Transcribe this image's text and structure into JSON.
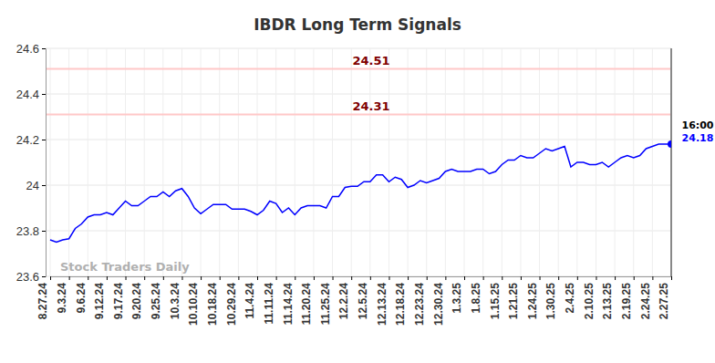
{
  "chart_data": {
    "type": "line",
    "title": "IBDR Long Term Signals",
    "watermark": "Stock Traders Daily",
    "annotations": [
      "16:00"
    ],
    "hlines": [
      24.51,
      24.31
    ],
    "categories": [
      "8.27.24",
      null,
      null,
      "9.3.24",
      null,
      null,
      "9.6.24",
      null,
      null,
      "9.12.24",
      null,
      null,
      "9.17.24",
      null,
      null,
      "9.20.24",
      null,
      null,
      "9.25.24",
      null,
      null,
      "10.3.24",
      null,
      null,
      "10.10.24",
      null,
      null,
      "10.18.24",
      null,
      null,
      "10.29.24",
      null,
      null,
      "11.4.24",
      null,
      null,
      "11.11.24",
      null,
      null,
      "11.14.24",
      null,
      null,
      "11.20.24",
      null,
      null,
      "11.25.24",
      null,
      null,
      "12.2.24",
      null,
      null,
      "12.5.24",
      null,
      null,
      "12.13.24",
      null,
      null,
      "12.18.24",
      null,
      null,
      "12.23.24",
      null,
      null,
      "12.30.24",
      null,
      null,
      "1.3.25",
      null,
      null,
      "1.8.25",
      null,
      null,
      "1.15.25",
      null,
      null,
      "1.21.25",
      null,
      null,
      "1.24.25",
      null,
      null,
      "1.30.25",
      null,
      null,
      "2.4.25",
      null,
      null,
      "2.10.25",
      null,
      null,
      "2.13.25",
      null,
      null,
      "2.19.25",
      null,
      null,
      "2.24.25",
      null,
      null,
      "2.27.25"
    ],
    "series": [
      {
        "name": "IBDR",
        "color": "#0000ff",
        "values": [
          23.76,
          23.75,
          23.76,
          23.765,
          23.81,
          23.83,
          23.86,
          23.87,
          23.87,
          23.88,
          23.87,
          23.9,
          23.93,
          23.91,
          23.91,
          23.93,
          23.95,
          23.95,
          23.97,
          23.95,
          23.975,
          23.985,
          23.95,
          23.9,
          23.875,
          23.895,
          23.915,
          23.915,
          23.915,
          23.895,
          23.895,
          23.895,
          23.885,
          23.87,
          23.89,
          23.93,
          23.92,
          23.88,
          23.9,
          23.87,
          23.9,
          23.91,
          23.91,
          23.91,
          23.9,
          23.95,
          23.95,
          23.99,
          23.995,
          23.995,
          24.015,
          24.015,
          24.045,
          24.045,
          24.015,
          24.035,
          24.025,
          23.99,
          24.0,
          24.02,
          24.01,
          24.02,
          24.03,
          24.06,
          24.07,
          24.06,
          24.06,
          24.06,
          24.07,
          24.07,
          24.05,
          24.06,
          24.09,
          24.11,
          24.11,
          24.13,
          24.12,
          24.12,
          24.14,
          24.16,
          24.15,
          24.16,
          24.17,
          24.08,
          24.1,
          24.1,
          24.09,
          24.09,
          24.1,
          24.08,
          24.1,
          24.12,
          24.13,
          24.12,
          24.13,
          24.16,
          24.17,
          24.18,
          24.18,
          24.18
        ]
      }
    ],
    "ylim": [
      23.6,
      24.6
    ],
    "yticks": [
      23.6,
      23.8,
      24,
      24.2,
      24.4,
      24.6
    ],
    "grid": true
  }
}
